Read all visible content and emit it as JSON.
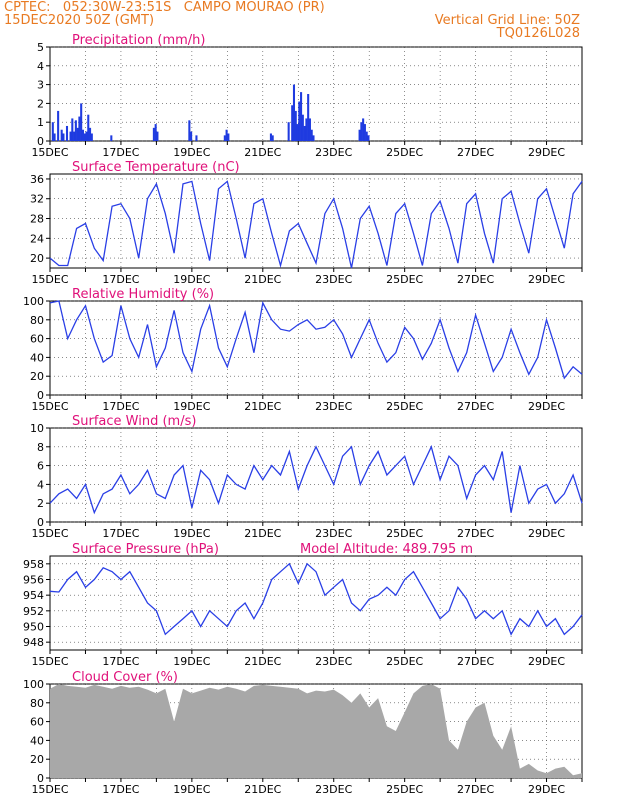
{
  "header": {
    "line1": "CPTEC:   052:30W-23:51S   CAMPO MOURAO (PR)",
    "line2_left": "15DEC2020 50Z (GMT)",
    "line2_right": "Vertical Grid Line: 50Z",
    "line3_right": "TQ0126L028"
  },
  "colors": {
    "header": "#e87a22",
    "title": "#e0117a",
    "line": "#2a3fe6",
    "bar": "#1f3be0",
    "cloud": "#a8a8a8"
  },
  "chart_data": [
    {
      "type": "bar",
      "title": "Precipitation (mm/h)",
      "x_ticks": [
        "15DEC",
        "17DEC",
        "19DEC",
        "21DEC",
        "23DEC",
        "25DEC",
        "27DEC",
        "29DEC"
      ],
      "ylim": [
        0,
        5
      ],
      "y_ticks": [
        0,
        1,
        2,
        3,
        4,
        5
      ],
      "x_range_days": [
        0,
        15
      ],
      "bars": [
        [
          0.05,
          1.0
        ],
        [
          0.1,
          0.4
        ],
        [
          0.2,
          1.6
        ],
        [
          0.3,
          0.6
        ],
        [
          0.35,
          0.4
        ],
        [
          0.45,
          0.8
        ],
        [
          0.55,
          0.5
        ],
        [
          0.6,
          1.2
        ],
        [
          0.65,
          0.5
        ],
        [
          0.7,
          1.1
        ],
        [
          0.75,
          0.7
        ],
        [
          0.8,
          1.3
        ],
        [
          0.85,
          2.0
        ],
        [
          0.9,
          0.6
        ],
        [
          0.95,
          0.4
        ],
        [
          1.0,
          0.5
        ],
        [
          1.05,
          1.4
        ],
        [
          1.1,
          0.7
        ],
        [
          1.15,
          0.4
        ],
        [
          1.7,
          0.3
        ],
        [
          2.9,
          0.7
        ],
        [
          2.95,
          0.9
        ],
        [
          3.0,
          0.5
        ],
        [
          3.9,
          1.1
        ],
        [
          3.95,
          0.5
        ],
        [
          4.1,
          0.3
        ],
        [
          4.9,
          0.3
        ],
        [
          4.95,
          0.6
        ],
        [
          5.0,
          0.4
        ],
        [
          6.2,
          0.4
        ],
        [
          6.25,
          0.3
        ],
        [
          6.7,
          1.0
        ],
        [
          6.8,
          1.9
        ],
        [
          6.85,
          3.0
        ],
        [
          6.9,
          1.6
        ],
        [
          6.95,
          0.9
        ],
        [
          7.0,
          2.1
        ],
        [
          7.05,
          2.6
        ],
        [
          7.1,
          1.4
        ],
        [
          7.15,
          0.8
        ],
        [
          7.2,
          1.2
        ],
        [
          7.25,
          2.5
        ],
        [
          7.3,
          1.2
        ],
        [
          7.35,
          0.6
        ],
        [
          7.4,
          0.3
        ],
        [
          8.7,
          0.6
        ],
        [
          8.75,
          1.0
        ],
        [
          8.8,
          1.2
        ],
        [
          8.85,
          0.9
        ],
        [
          8.9,
          0.5
        ],
        [
          8.95,
          0.3
        ]
      ]
    },
    {
      "type": "line",
      "title": "Surface Temperature (nC)",
      "x_ticks": [
        "15DEC",
        "17DEC",
        "19DEC",
        "21DEC",
        "23DEC",
        "25DEC",
        "27DEC",
        "29DEC"
      ],
      "ylim": [
        18,
        37
      ],
      "y_ticks": [
        20,
        24,
        28,
        32,
        36
      ],
      "x": [
        0,
        0.25,
        0.5,
        0.75,
        1.0,
        1.25,
        1.5,
        1.75,
        2.0,
        2.25,
        2.5,
        2.75,
        3.0,
        3.25,
        3.5,
        3.75,
        4.0,
        4.25,
        4.5,
        4.75,
        5.0,
        5.25,
        5.5,
        5.75,
        6.0,
        6.25,
        6.5,
        6.75,
        7.0,
        7.25,
        7.5,
        7.75,
        8.0,
        8.25,
        8.5,
        8.75,
        9.0,
        9.25,
        9.5,
        9.75,
        10.0,
        10.25,
        10.5,
        10.75,
        11.0,
        11.25,
        11.5,
        11.75,
        12.0,
        12.25,
        12.5,
        12.75,
        13.0,
        13.25,
        13.5,
        13.75,
        14.0,
        14.25,
        14.5,
        14.75,
        15.0
      ],
      "values": [
        20,
        18.5,
        18.5,
        26,
        27,
        22,
        19.5,
        30.5,
        31,
        28,
        20,
        32,
        35,
        29,
        21,
        35,
        35.5,
        27,
        19.5,
        34,
        35.5,
        28,
        20,
        31,
        32,
        25,
        18.5,
        25.5,
        27,
        23,
        19,
        29,
        32,
        26,
        18,
        28,
        30.5,
        25,
        18.5,
        29,
        31,
        25,
        18.5,
        29,
        31.5,
        26,
        19,
        31,
        33,
        25,
        19,
        32,
        33.5,
        27,
        21,
        32,
        34,
        28,
        22,
        33,
        35.5
      ]
    },
    {
      "type": "line",
      "title": "Relative Humidity (%)",
      "x_ticks": [
        "15DEC",
        "17DEC",
        "19DEC",
        "21DEC",
        "23DEC",
        "25DEC",
        "27DEC",
        "29DEC"
      ],
      "ylim": [
        0,
        100
      ],
      "y_ticks": [
        0,
        20,
        40,
        60,
        80,
        100
      ],
      "x": [
        0,
        0.25,
        0.5,
        0.75,
        1.0,
        1.25,
        1.5,
        1.75,
        2.0,
        2.25,
        2.5,
        2.75,
        3.0,
        3.25,
        3.5,
        3.75,
        4.0,
        4.25,
        4.5,
        4.75,
        5.0,
        5.25,
        5.5,
        5.75,
        6.0,
        6.25,
        6.5,
        6.75,
        7.0,
        7.25,
        7.5,
        7.75,
        8.0,
        8.25,
        8.5,
        8.75,
        9.0,
        9.25,
        9.5,
        9.75,
        10.0,
        10.25,
        10.5,
        10.75,
        11.0,
        11.25,
        11.5,
        11.75,
        12.0,
        12.25,
        12.5,
        12.75,
        13.0,
        13.25,
        13.5,
        13.75,
        14.0,
        14.25,
        14.5,
        14.75,
        15.0
      ],
      "values": [
        98,
        100,
        60,
        80,
        95,
        60,
        35,
        42,
        95,
        60,
        40,
        75,
        30,
        50,
        90,
        45,
        25,
        70,
        95,
        50,
        30,
        60,
        88,
        45,
        98,
        80,
        70,
        68,
        75,
        80,
        70,
        72,
        80,
        65,
        40,
        60,
        80,
        55,
        35,
        45,
        72,
        60,
        38,
        55,
        80,
        50,
        25,
        45,
        85,
        55,
        25,
        40,
        70,
        45,
        22,
        40,
        80,
        50,
        18,
        30,
        22
      ]
    },
    {
      "type": "line",
      "title": "Surface Wind (m/s)",
      "x_ticks": [
        "15DEC",
        "17DEC",
        "19DEC",
        "21DEC",
        "23DEC",
        "25DEC",
        "27DEC",
        "29DEC"
      ],
      "ylim": [
        0,
        10
      ],
      "y_ticks": [
        0,
        2,
        4,
        6,
        8,
        10
      ],
      "x": [
        0,
        0.25,
        0.5,
        0.75,
        1.0,
        1.25,
        1.5,
        1.75,
        2.0,
        2.25,
        2.5,
        2.75,
        3.0,
        3.25,
        3.5,
        3.75,
        4.0,
        4.25,
        4.5,
        4.75,
        5.0,
        5.25,
        5.5,
        5.75,
        6.0,
        6.25,
        6.5,
        6.75,
        7.0,
        7.25,
        7.5,
        7.75,
        8.0,
        8.25,
        8.5,
        8.75,
        9.0,
        9.25,
        9.5,
        9.75,
        10.0,
        10.25,
        10.5,
        10.75,
        11.0,
        11.25,
        11.5,
        11.75,
        12.0,
        12.25,
        12.5,
        12.75,
        13.0,
        13.25,
        13.5,
        13.75,
        14.0,
        14.25,
        14.5,
        14.75,
        15.0
      ],
      "values": [
        2,
        3,
        3.5,
        2.5,
        4,
        1,
        3,
        3.5,
        5,
        3,
        4,
        5.5,
        3,
        2.5,
        5,
        6,
        1.5,
        5.5,
        4.5,
        2,
        5,
        4,
        3.5,
        6,
        4.5,
        6,
        5,
        7.5,
        3.5,
        6,
        8,
        6,
        4,
        7,
        8,
        4,
        6,
        7.5,
        5,
        6,
        7,
        4,
        6,
        8,
        4.5,
        7,
        6,
        2.5,
        5,
        6,
        4.5,
        7.5,
        1,
        6,
        2,
        3.5,
        4,
        2,
        3,
        5,
        2
      ]
    },
    {
      "type": "line",
      "title": "Surface Pressure (hPa)",
      "annotation": "Model Altitude: 489.795 m",
      "x_ticks": [
        "15DEC",
        "17DEC",
        "19DEC",
        "21DEC",
        "23DEC",
        "25DEC",
        "27DEC",
        "29DEC"
      ],
      "ylim": [
        947,
        959
      ],
      "y_ticks": [
        948,
        950,
        952,
        954,
        956,
        958
      ],
      "x": [
        0,
        0.25,
        0.5,
        0.75,
        1.0,
        1.25,
        1.5,
        1.75,
        2.0,
        2.25,
        2.5,
        2.75,
        3.0,
        3.25,
        3.5,
        3.75,
        4.0,
        4.25,
        4.5,
        4.75,
        5.0,
        5.25,
        5.5,
        5.75,
        6.0,
        6.25,
        6.5,
        6.75,
        7.0,
        7.25,
        7.5,
        7.75,
        8.0,
        8.25,
        8.5,
        8.75,
        9.0,
        9.25,
        9.5,
        9.75,
        10.0,
        10.25,
        10.5,
        10.75,
        11.0,
        11.25,
        11.5,
        11.75,
        12.0,
        12.25,
        12.5,
        12.75,
        13.0,
        13.25,
        13.5,
        13.75,
        14.0,
        14.25,
        14.5,
        14.75,
        15.0
      ],
      "values": [
        954.5,
        954.4,
        956,
        957,
        955,
        956,
        957.5,
        957,
        956,
        957,
        955,
        953,
        952,
        949,
        950,
        951,
        952,
        950,
        952,
        951,
        950,
        952,
        953,
        951,
        953,
        956,
        957,
        958,
        955.5,
        958,
        957,
        954,
        955,
        956,
        953,
        952,
        953.5,
        954,
        955,
        954,
        956,
        957,
        955,
        953,
        951,
        952,
        955,
        953.5,
        951,
        952,
        951,
        952,
        949,
        951,
        950,
        952,
        950,
        951,
        949,
        950,
        951.5
      ]
    },
    {
      "type": "area",
      "title": "Cloud Cover (%)",
      "x_ticks": [
        "15DEC",
        "17DEC",
        "19DEC",
        "21DEC",
        "23DEC",
        "25DEC",
        "27DEC",
        "29DEC"
      ],
      "ylim": [
        0,
        100
      ],
      "y_ticks": [
        0,
        20,
        40,
        60,
        80,
        100
      ],
      "x": [
        0,
        0.25,
        0.5,
        0.75,
        1.0,
        1.25,
        1.5,
        1.75,
        2.0,
        2.25,
        2.5,
        2.75,
        3.0,
        3.25,
        3.5,
        3.75,
        4.0,
        4.25,
        4.5,
        4.75,
        5.0,
        5.25,
        5.5,
        5.75,
        6.0,
        6.25,
        6.5,
        6.75,
        7.0,
        7.25,
        7.5,
        7.75,
        8.0,
        8.25,
        8.5,
        8.75,
        9.0,
        9.25,
        9.5,
        9.75,
        10.0,
        10.25,
        10.5,
        10.75,
        11.0,
        11.25,
        11.5,
        11.75,
        12.0,
        12.25,
        12.5,
        12.75,
        13.0,
        13.25,
        13.5,
        13.75,
        14.0,
        14.25,
        14.5,
        14.75,
        15.0
      ],
      "values": [
        95,
        100,
        98,
        97,
        96,
        99,
        97,
        95,
        98,
        96,
        97,
        94,
        90,
        95,
        60,
        95,
        90,
        93,
        96,
        94,
        97,
        95,
        92,
        98,
        99,
        98,
        97,
        96,
        95,
        90,
        93,
        92,
        94,
        88,
        80,
        90,
        75,
        85,
        55,
        50,
        70,
        90,
        98,
        100,
        95,
        40,
        30,
        60,
        75,
        80,
        45,
        30,
        55,
        10,
        15,
        8,
        5,
        10,
        12,
        3,
        5
      ]
    }
  ]
}
